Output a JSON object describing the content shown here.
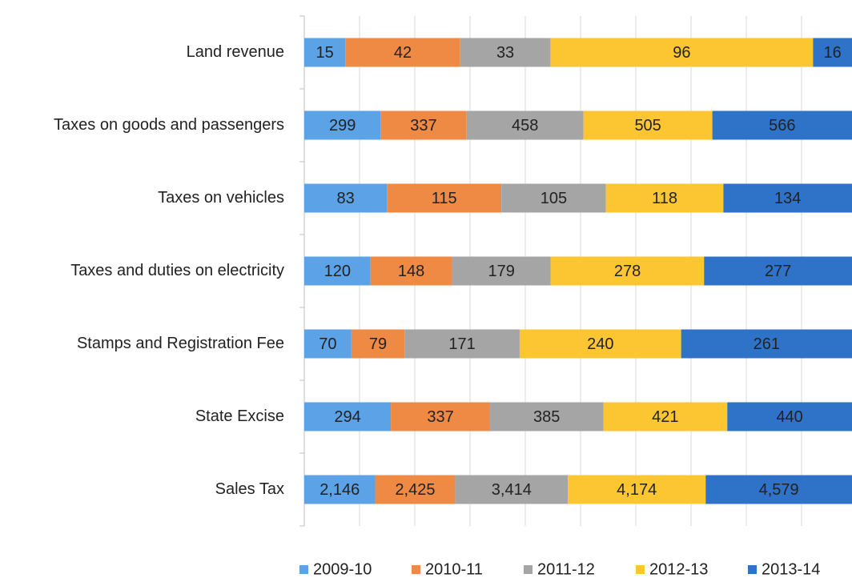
{
  "chart_data": {
    "type": "bar",
    "orientation": "horizontal",
    "stacked": "percent",
    "categories": [
      "Land revenue",
      "Taxes on goods and passengers",
      "Taxes on vehicles",
      "Taxes and duties on electricity",
      "Stamps and Registration Fee",
      "State Excise",
      "Sales Tax"
    ],
    "series": [
      {
        "name": "2009-10",
        "color": "#5ba3e6",
        "values": [
          15,
          299,
          83,
          120,
          70,
          294,
          2146
        ],
        "value_labels": [
          "15",
          "299",
          "83",
          "120",
          "70",
          "294",
          "2,146"
        ]
      },
      {
        "name": "2010-11",
        "color": "#ee8a44",
        "values": [
          42,
          337,
          115,
          148,
          79,
          337,
          2425
        ],
        "value_labels": [
          "42",
          "337",
          "115",
          "148",
          "79",
          "337",
          "2,425"
        ]
      },
      {
        "name": "2011-12",
        "color": "#a5a5a5",
        "values": [
          33,
          458,
          105,
          179,
          171,
          385,
          3414
        ],
        "value_labels": [
          "33",
          "458",
          "105",
          "179",
          "171",
          "385",
          "3,414"
        ]
      },
      {
        "name": "2012-13",
        "color": "#fcc532",
        "values": [
          96,
          505,
          118,
          278,
          240,
          421,
          4174
        ],
        "value_labels": [
          "96",
          "505",
          "118",
          "278",
          "240",
          "421",
          "4,174"
        ]
      },
      {
        "name": "2013-14",
        "color": "#2f73c9",
        "values": [
          16,
          566,
          134,
          277,
          261,
          440,
          4579
        ],
        "value_labels": [
          "16",
          "566",
          "134",
          "277",
          "261",
          "440",
          "4,579"
        ]
      }
    ],
    "xlim": [
      0,
      100
    ],
    "xticks": [
      0,
      10,
      20,
      30,
      40,
      50,
      60,
      70,
      80,
      90,
      100
    ],
    "grid": true,
    "legend": "bottom"
  }
}
